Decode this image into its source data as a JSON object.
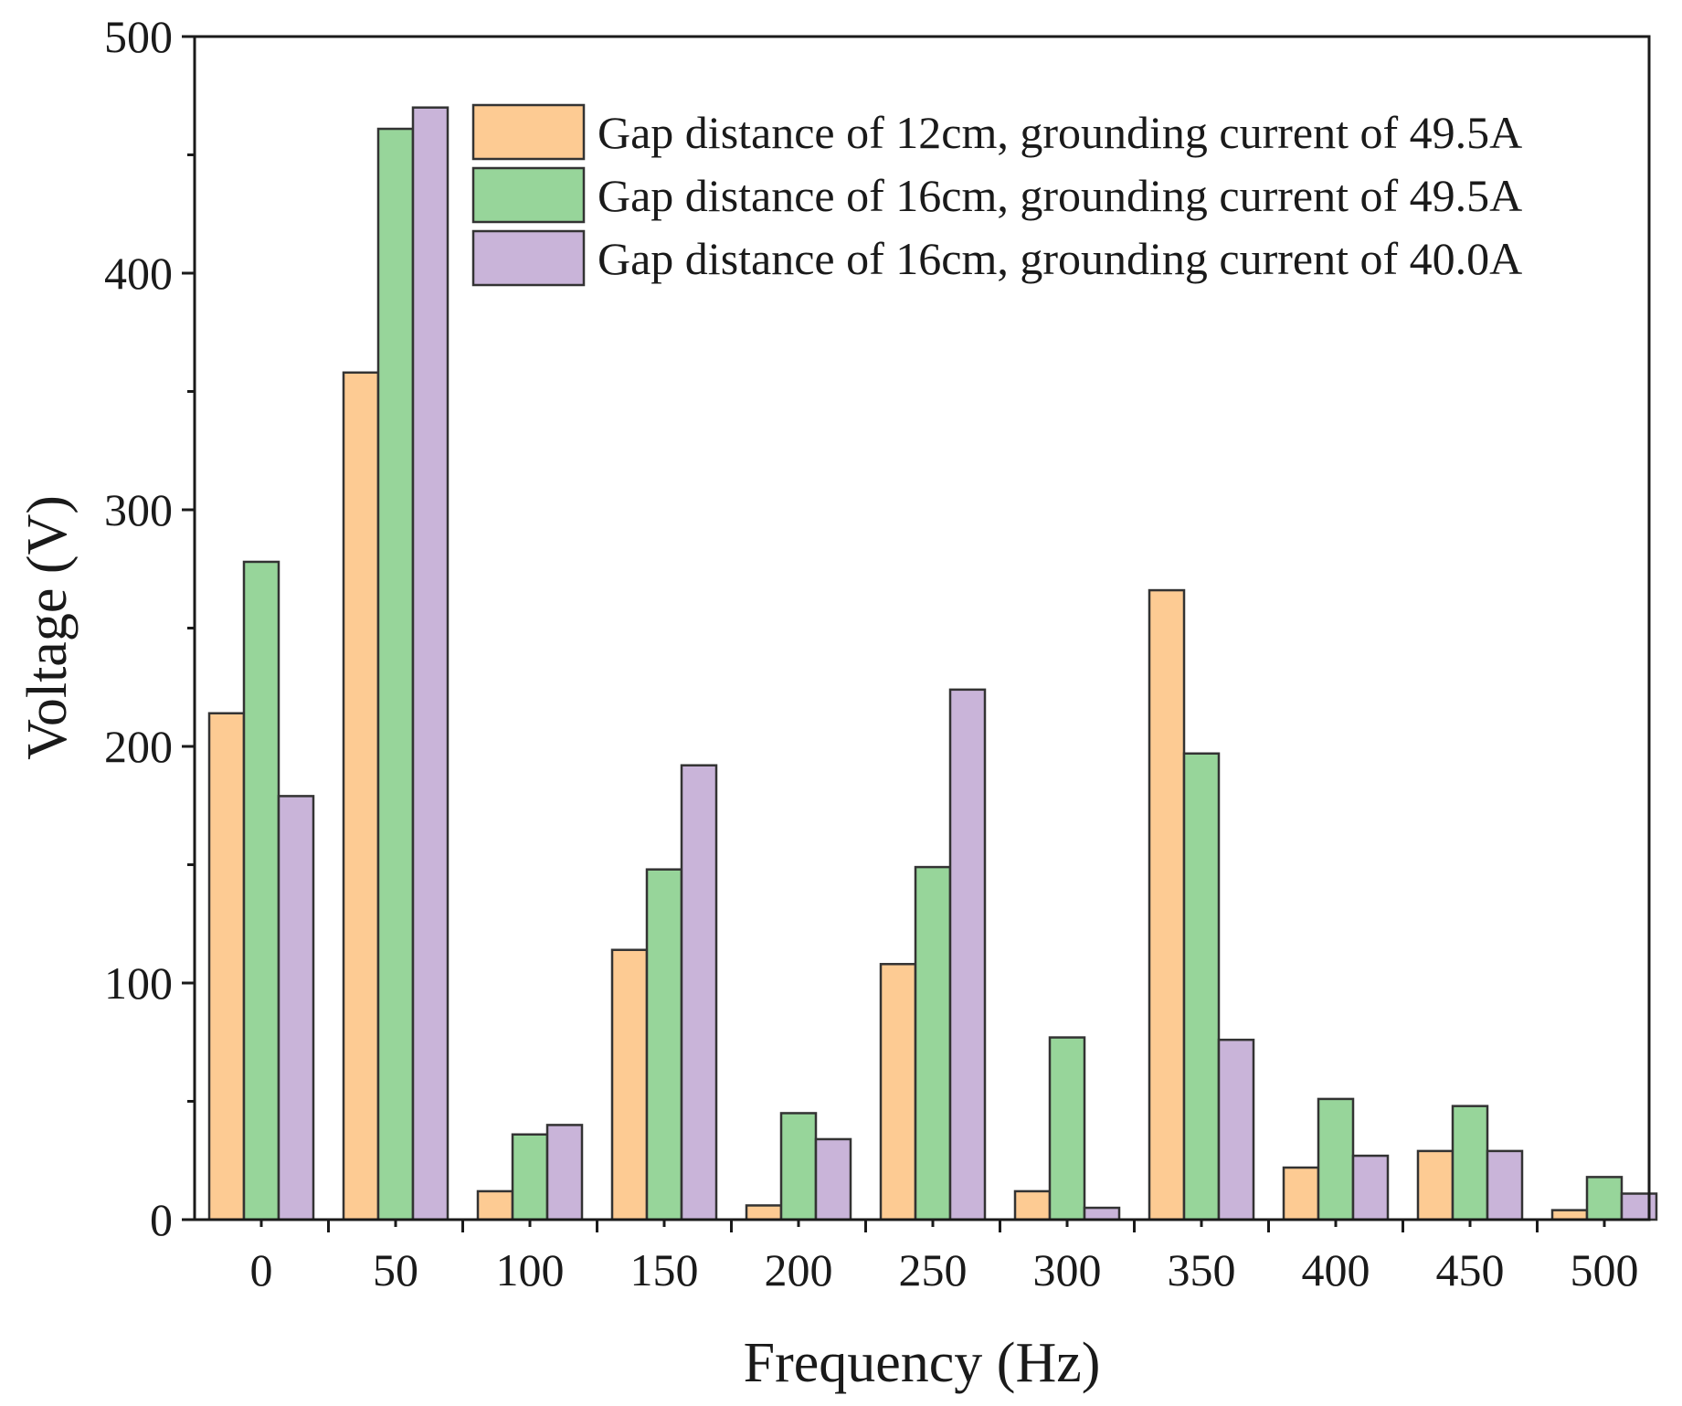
{
  "chart_data": {
    "type": "bar",
    "xlabel": "Frequency (Hz)",
    "ylabel": "Voltage (V)",
    "ylim": [
      0,
      500
    ],
    "yticks": [
      0,
      100,
      200,
      300,
      400,
      500
    ],
    "categories": [
      "0",
      "50",
      "100",
      "150",
      "200",
      "250",
      "300",
      "350",
      "400",
      "450",
      "500"
    ],
    "series": [
      {
        "name": "Gap distance of 12cm, grounding current of 49.5A",
        "color": "#FDCB93",
        "values": [
          214,
          358,
          12,
          114,
          6,
          108,
          12,
          266,
          22,
          29,
          4
        ]
      },
      {
        "name": "Gap distance of 16cm, grounding current of 49.5A",
        "color": "#97D59A",
        "values": [
          278,
          461,
          36,
          148,
          45,
          149,
          77,
          197,
          51,
          48,
          18
        ]
      },
      {
        "name": "Gap distance of 16cm, grounding current of 40.0A",
        "color": "#C9B4D9",
        "values": [
          179,
          470,
          40,
          192,
          34,
          224,
          5,
          76,
          27,
          29,
          11
        ]
      }
    ],
    "legend_position": "top-right"
  }
}
